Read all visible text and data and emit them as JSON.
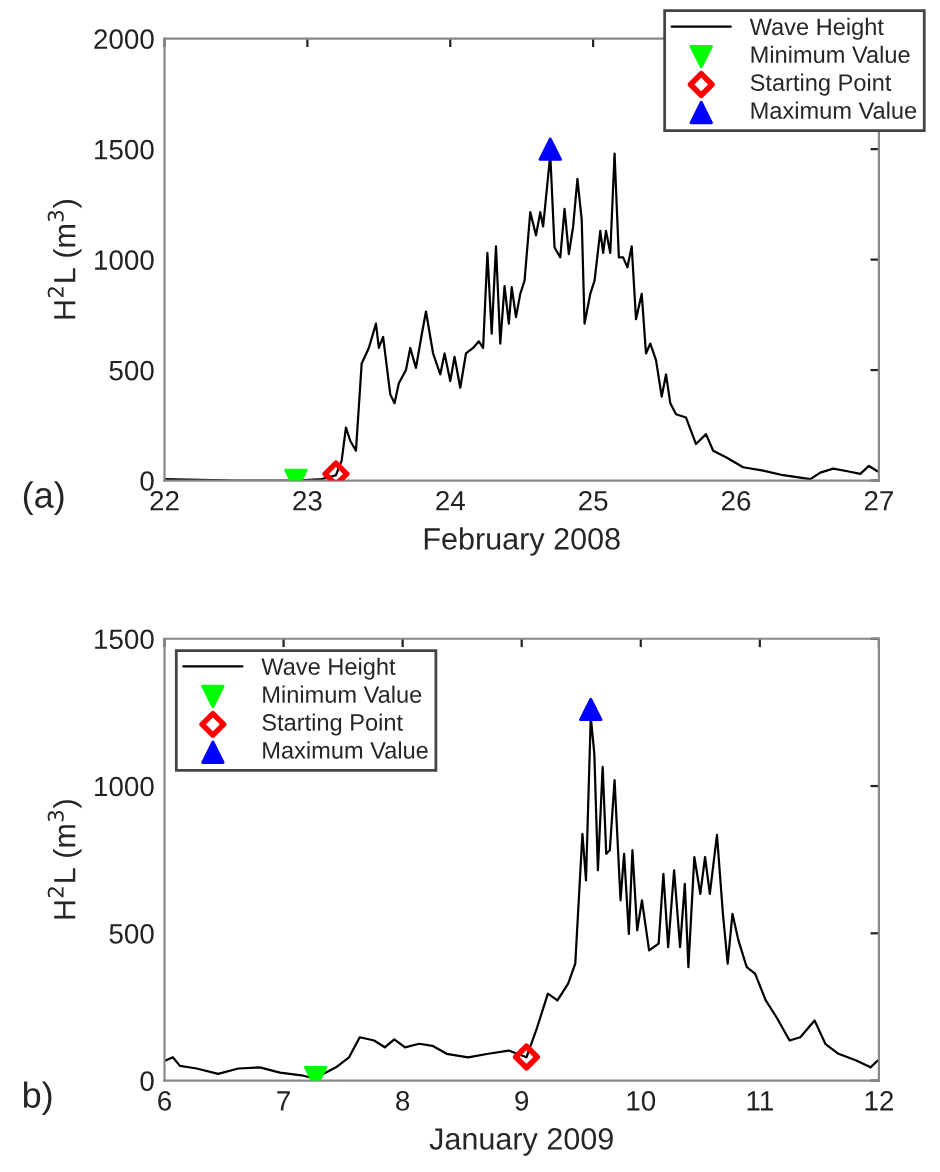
{
  "chart_data": [
    {
      "type": "line",
      "xlabel": "February 2008",
      "ylabel": "H$^{2}$L (m$^{3}$)",
      "xlim": [
        22,
        27
      ],
      "xticks": [
        22,
        23,
        24,
        25,
        26,
        27
      ],
      "ylim": [
        0,
        2000
      ],
      "yticks": [
        0,
        500,
        1000,
        1500,
        2000
      ],
      "grid": false,
      "legend": "top right",
      "annotations": [
        "(a)"
      ],
      "series": [
        {
          "name": "Wave Height",
          "color": "#000000",
          "marker": "none",
          "x": [
            22,
            22.5,
            22.92,
            23.1,
            23.2,
            23.24,
            23.27,
            23.3,
            23.34,
            23.38,
            23.43,
            23.48,
            23.5,
            23.53,
            23.58,
            23.61,
            23.64,
            23.69,
            23.72,
            23.76,
            23.8,
            23.83,
            23.88,
            23.93,
            23.96,
            24.0,
            24.03,
            24.07,
            24.11,
            24.16,
            24.2,
            24.23,
            24.26,
            24.29,
            24.32,
            24.35,
            24.38,
            24.41,
            24.43,
            24.46,
            24.49,
            24.52,
            24.56,
            24.6,
            24.63,
            24.65,
            24.7,
            24.73,
            24.77,
            24.8,
            24.83,
            24.86,
            24.89,
            24.92,
            24.94,
            24.98,
            25.01,
            25.05,
            25.07,
            25.09,
            25.12,
            25.15,
            25.18,
            25.21,
            25.24,
            25.27,
            25.3,
            25.34,
            25.37,
            25.4,
            25.44,
            25.48,
            25.51,
            25.54,
            25.58,
            25.65,
            25.72,
            25.79,
            25.84,
            25.93,
            26.05,
            26.19,
            26.33,
            26.52,
            26.59,
            26.68,
            26.78,
            26.87,
            26.93,
            26.99
          ],
          "values": [
            6,
            0,
            0,
            6,
            24,
            90,
            240,
            180,
            135,
            530,
            600,
            710,
            600,
            650,
            390,
            350,
            440,
            500,
            600,
            510,
            660,
            765,
            575,
            480,
            575,
            450,
            560,
            420,
            575,
            600,
            630,
            600,
            1030,
            665,
            1060,
            620,
            880,
            710,
            875,
            740,
            845,
            905,
            1215,
            1110,
            1215,
            1150,
            1475,
            1055,
            1010,
            1230,
            1025,
            1150,
            1365,
            1180,
            710,
            845,
            905,
            1130,
            1030,
            1130,
            1030,
            1480,
            1010,
            1010,
            965,
            1060,
            730,
            845,
            575,
            620,
            545,
            380,
            480,
            350,
            300,
            285,
            165,
            210,
            135,
            105,
            60,
            45,
            24,
            6,
            36,
            54,
            42,
            30,
            66,
            42
          ]
        },
        {
          "name": "Minimum Value",
          "type": "scatter",
          "color": "#00ff00",
          "marker": "triangle_down",
          "x": [
            22.92
          ],
          "values": [
            0
          ]
        },
        {
          "name": "Starting Point",
          "type": "scatter",
          "color": "#ff0000",
          "marker": "diamond",
          "x": [
            23.2
          ],
          "values": [
            30
          ]
        },
        {
          "name": "Maximum Value",
          "type": "scatter",
          "color": "#0000ff",
          "marker": "triangle",
          "x": [
            24.7
          ],
          "values": [
            1500
          ]
        }
      ]
    },
    {
      "type": "line",
      "xlabel": "January 2009",
      "ylabel": "H$^{2}$L (m$^{3}$)",
      "xlim": [
        6,
        12
      ],
      "xticks": [
        6,
        7,
        8,
        9,
        10,
        11,
        12
      ],
      "ylim": [
        0,
        1500
      ],
      "yticks": [
        0,
        500,
        1000,
        1500
      ],
      "grid": false,
      "legend": "top left",
      "annotations": [
        "b)"
      ],
      "series": [
        {
          "name": "Wave Height",
          "color": "#000000",
          "marker": "none",
          "x": [
            6.01,
            6.07,
            6.13,
            6.27,
            6.45,
            6.62,
            6.8,
            6.97,
            7.15,
            7.26,
            7.44,
            7.55,
            7.64,
            7.76,
            7.85,
            7.93,
            8.02,
            8.14,
            8.25,
            8.37,
            8.55,
            8.72,
            8.89,
            9.04,
            9.13,
            9.22,
            9.3,
            9.39,
            9.45,
            9.51,
            9.54,
            9.58,
            9.61,
            9.64,
            9.68,
            9.71,
            9.74,
            9.78,
            9.83,
            9.86,
            9.9,
            9.93,
            9.97,
            10.01,
            10.07,
            10.15,
            10.19,
            10.23,
            10.28,
            10.33,
            10.37,
            10.4,
            10.45,
            10.5,
            10.54,
            10.58,
            10.64,
            10.69,
            10.73,
            10.77,
            10.82,
            10.89,
            10.96,
            11.05,
            11.14,
            11.25,
            11.34,
            11.46,
            11.55,
            11.66,
            11.81,
            11.93,
            11.99
          ],
          "values": [
            68,
            79,
            50,
            41,
            23,
            41,
            45,
            27,
            18,
            7,
            45,
            79,
            147,
            136,
            113,
            140,
            113,
            125,
            118,
            91,
            79,
            91,
            102,
            79,
            181,
            295,
            272,
            329,
            397,
            838,
            680,
            1235,
            1110,
            714,
            1065,
            770,
            782,
            1020,
            612,
            770,
            498,
            782,
            510,
            612,
            442,
            465,
            702,
            453,
            714,
            453,
            668,
            385,
            759,
            634,
            759,
            634,
            834,
            566,
            397,
            566,
            476,
            385,
            363,
            272,
            215,
            136,
            147,
            204,
            125,
            91,
            68,
            45,
            68
          ]
        },
        {
          "name": "Minimum Value",
          "type": "scatter",
          "color": "#00ff00",
          "marker": "triangle_down",
          "x": [
            7.27
          ],
          "values": [
            10
          ]
        },
        {
          "name": "Starting Point",
          "type": "scatter",
          "color": "#ff0000",
          "marker": "diamond",
          "x": [
            9.04
          ],
          "values": [
            80
          ]
        },
        {
          "name": "Maximum Value",
          "type": "scatter",
          "color": "#0000ff",
          "marker": "triangle",
          "x": [
            9.58
          ],
          "values": [
            1260
          ]
        }
      ]
    }
  ]
}
